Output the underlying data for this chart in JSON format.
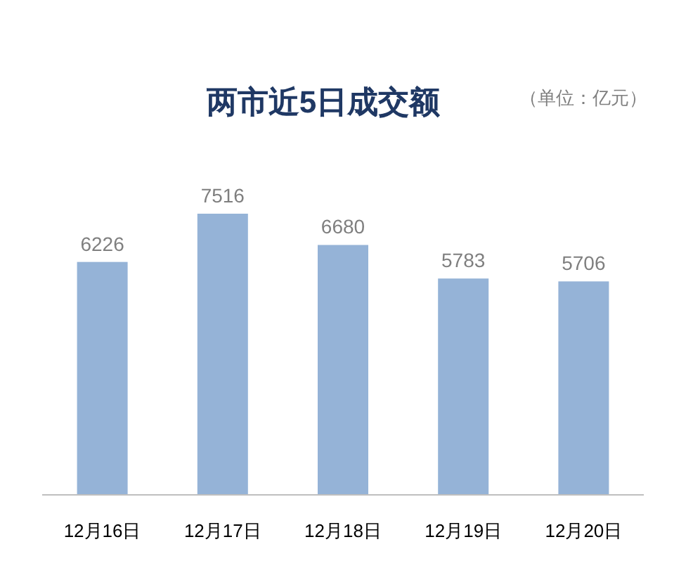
{
  "chart_data": {
    "type": "bar",
    "title": "两市近5日成交额",
    "annotations": [
      "（单位：亿元）"
    ],
    "categories": [
      "12月16日",
      "12月17日",
      "12月18日",
      "12月19日",
      "12月20日"
    ],
    "values": [
      6226,
      7516,
      6680,
      5783,
      5706
    ],
    "color": "#95b3d7",
    "data_labels": true
  }
}
